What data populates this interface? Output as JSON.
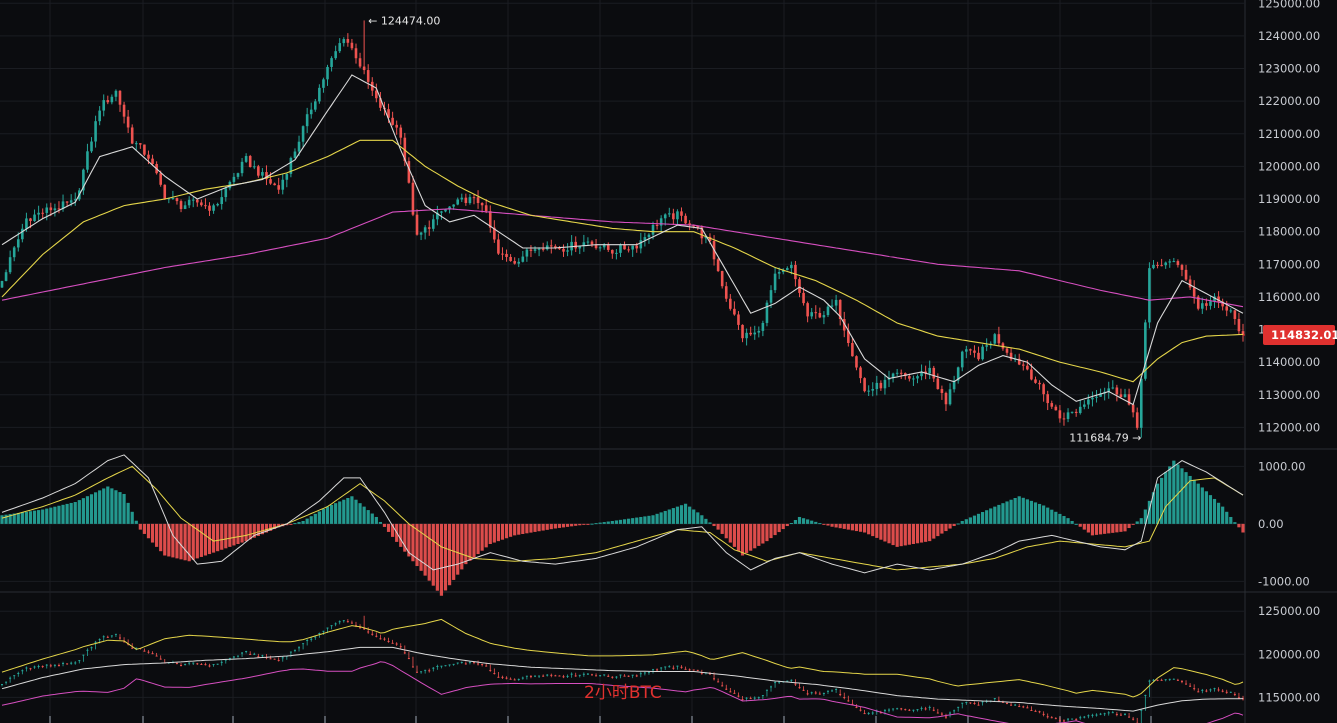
{
  "chart_data": [
    {
      "type": "candlestick",
      "panel": "price",
      "timeframe_label": "2小时BTC",
      "y_ticks": [
        "125000.00",
        "124000.00",
        "123000.00",
        "122000.00",
        "121000.00",
        "120000.00",
        "119000.00",
        "118000.00",
        "117000.00",
        "116000.00",
        "115000.00",
        "114000.00",
        "113000.00",
        "112000.00"
      ],
      "ylim": [
        111400,
        125100
      ],
      "high_marker": "124474.00",
      "low_marker": "111684.79",
      "current_price": "114832.01",
      "current_price_value": 114832.01,
      "colors": {
        "up": "#26a69a",
        "down": "#ef5350",
        "ma_fast": "#d9d9d9",
        "ma_mid": "#e5d64a",
        "ma_slow": "#d64fc0",
        "price_tag": "#e0312f"
      },
      "close_path": [
        [
          0,
          116500
        ],
        [
          6,
          118400
        ],
        [
          12,
          118700
        ],
        [
          18,
          118900
        ],
        [
          24,
          121800
        ],
        [
          28,
          122300
        ],
        [
          32,
          120800
        ],
        [
          36,
          120300
        ],
        [
          40,
          119100
        ],
        [
          44,
          118800
        ],
        [
          48,
          118900
        ],
        [
          52,
          118700
        ],
        [
          56,
          119500
        ],
        [
          60,
          120200
        ],
        [
          64,
          119700
        ],
        [
          68,
          119300
        ],
        [
          72,
          120500
        ],
        [
          76,
          121800
        ],
        [
          80,
          123000
        ],
        [
          84,
          124000
        ],
        [
          87,
          123400
        ],
        [
          92,
          122000
        ],
        [
          98,
          121000
        ],
        [
          102,
          117800
        ],
        [
          108,
          118600
        ],
        [
          114,
          119000
        ],
        [
          118,
          118900
        ],
        [
          122,
          117300
        ],
        [
          126,
          117100
        ],
        [
          132,
          117600
        ],
        [
          138,
          117500
        ],
        [
          144,
          117700
        ],
        [
          150,
          117400
        ],
        [
          156,
          117600
        ],
        [
          162,
          118400
        ],
        [
          166,
          118500
        ],
        [
          170,
          118200
        ],
        [
          174,
          117600
        ],
        [
          178,
          116000
        ],
        [
          182,
          114800
        ],
        [
          186,
          114900
        ],
        [
          190,
          116600
        ],
        [
          194,
          116900
        ],
        [
          198,
          115400
        ],
        [
          202,
          115500
        ],
        [
          205,
          115800
        ],
        [
          208,
          114700
        ],
        [
          212,
          113100
        ],
        [
          216,
          113300
        ],
        [
          220,
          113600
        ],
        [
          224,
          113500
        ],
        [
          228,
          113800
        ],
        [
          232,
          112700
        ],
        [
          236,
          114300
        ],
        [
          240,
          114200
        ],
        [
          244,
          114800
        ],
        [
          248,
          114200
        ],
        [
          252,
          113800
        ],
        [
          256,
          113000
        ],
        [
          260,
          112300
        ],
        [
          264,
          112500
        ],
        [
          268,
          113000
        ],
        [
          272,
          113200
        ],
        [
          276,
          113000
        ],
        [
          279,
          112000
        ],
        [
          282,
          116800
        ],
        [
          286,
          117100
        ],
        [
          290,
          116900
        ],
        [
          294,
          115700
        ],
        [
          298,
          115900
        ],
        [
          302,
          115500
        ],
        [
          305,
          114832
        ]
      ],
      "ma_fast": [
        [
          0,
          117600
        ],
        [
          10,
          118400
        ],
        [
          18,
          118900
        ],
        [
          24,
          120300
        ],
        [
          32,
          120600
        ],
        [
          40,
          119700
        ],
        [
          48,
          119000
        ],
        [
          56,
          119400
        ],
        [
          64,
          119600
        ],
        [
          72,
          120200
        ],
        [
          80,
          121700
        ],
        [
          86,
          122800
        ],
        [
          92,
          122400
        ],
        [
          98,
          120500
        ],
        [
          104,
          118800
        ],
        [
          110,
          118300
        ],
        [
          116,
          118500
        ],
        [
          122,
          118000
        ],
        [
          128,
          117500
        ],
        [
          136,
          117500
        ],
        [
          146,
          117600
        ],
        [
          156,
          117600
        ],
        [
          166,
          118200
        ],
        [
          172,
          118100
        ],
        [
          178,
          116800
        ],
        [
          184,
          115500
        ],
        [
          190,
          115800
        ],
        [
          196,
          116300
        ],
        [
          202,
          115900
        ],
        [
          206,
          115400
        ],
        [
          212,
          114100
        ],
        [
          218,
          113500
        ],
        [
          226,
          113700
        ],
        [
          234,
          113400
        ],
        [
          240,
          113900
        ],
        [
          246,
          114200
        ],
        [
          252,
          114000
        ],
        [
          258,
          113300
        ],
        [
          264,
          112800
        ],
        [
          272,
          113100
        ],
        [
          278,
          112700
        ],
        [
          284,
          115200
        ],
        [
          290,
          116500
        ],
        [
          296,
          116100
        ],
        [
          305,
          115500
        ]
      ],
      "ma_mid": [
        [
          0,
          116000
        ],
        [
          10,
          117300
        ],
        [
          20,
          118300
        ],
        [
          30,
          118800
        ],
        [
          40,
          119000
        ],
        [
          50,
          119300
        ],
        [
          60,
          119500
        ],
        [
          70,
          119800
        ],
        [
          80,
          120300
        ],
        [
          88,
          120800
        ],
        [
          96,
          120800
        ],
        [
          104,
          120000
        ],
        [
          112,
          119400
        ],
        [
          120,
          118900
        ],
        [
          130,
          118500
        ],
        [
          140,
          118300
        ],
        [
          150,
          118100
        ],
        [
          160,
          118000
        ],
        [
          170,
          118000
        ],
        [
          180,
          117500
        ],
        [
          190,
          116900
        ],
        [
          200,
          116500
        ],
        [
          210,
          115900
        ],
        [
          220,
          115200
        ],
        [
          230,
          114800
        ],
        [
          240,
          114600
        ],
        [
          250,
          114400
        ],
        [
          260,
          114000
        ],
        [
          270,
          113700
        ],
        [
          278,
          113400
        ],
        [
          284,
          114100
        ],
        [
          290,
          114600
        ],
        [
          296,
          114800
        ],
        [
          305,
          114850
        ]
      ],
      "ma_slow": [
        [
          0,
          115900
        ],
        [
          20,
          116400
        ],
        [
          40,
          116900
        ],
        [
          60,
          117300
        ],
        [
          80,
          117800
        ],
        [
          96,
          118600
        ],
        [
          110,
          118700
        ],
        [
          130,
          118500
        ],
        [
          150,
          118300
        ],
        [
          170,
          118200
        ],
        [
          190,
          117800
        ],
        [
          210,
          117400
        ],
        [
          230,
          117000
        ],
        [
          250,
          116800
        ],
        [
          270,
          116200
        ],
        [
          282,
          115900
        ],
        [
          292,
          116000
        ],
        [
          305,
          115700
        ]
      ]
    },
    {
      "type": "macd",
      "panel": "oscillator",
      "y_ticks": [
        "1000.00",
        "0.00",
        "-1000.00"
      ],
      "ylim": [
        -1150,
        1250
      ],
      "hist": [
        [
          0,
          150
        ],
        [
          10,
          250
        ],
        [
          18,
          380
        ],
        [
          26,
          650
        ],
        [
          30,
          520
        ],
        [
          34,
          -100
        ],
        [
          40,
          -550
        ],
        [
          46,
          -650
        ],
        [
          52,
          -500
        ],
        [
          60,
          -300
        ],
        [
          68,
          -60
        ],
        [
          74,
          50
        ],
        [
          80,
          300
        ],
        [
          86,
          480
        ],
        [
          92,
          120
        ],
        [
          98,
          -400
        ],
        [
          104,
          -900
        ],
        [
          108,
          -1250
        ],
        [
          114,
          -700
        ],
        [
          120,
          -350
        ],
        [
          126,
          -200
        ],
        [
          136,
          -80
        ],
        [
          150,
          50
        ],
        [
          160,
          150
        ],
        [
          168,
          350
        ],
        [
          172,
          150
        ],
        [
          176,
          -100
        ],
        [
          182,
          -550
        ],
        [
          188,
          -300
        ],
        [
          196,
          120
        ],
        [
          204,
          -50
        ],
        [
          212,
          -150
        ],
        [
          220,
          -400
        ],
        [
          228,
          -300
        ],
        [
          236,
          50
        ],
        [
          244,
          300
        ],
        [
          250,
          480
        ],
        [
          256,
          320
        ],
        [
          262,
          100
        ],
        [
          268,
          -200
        ],
        [
          276,
          -130
        ],
        [
          280,
          100
        ],
        [
          284,
          700
        ],
        [
          288,
          1100
        ],
        [
          294,
          700
        ],
        [
          300,
          300
        ],
        [
          305,
          -150
        ]
      ],
      "dif": [
        [
          0,
          200
        ],
        [
          10,
          450
        ],
        [
          18,
          700
        ],
        [
          26,
          1100
        ],
        [
          30,
          1200
        ],
        [
          36,
          800
        ],
        [
          42,
          -200
        ],
        [
          48,
          -700
        ],
        [
          54,
          -650
        ],
        [
          62,
          -200
        ],
        [
          70,
          0
        ],
        [
          78,
          400
        ],
        [
          84,
          800
        ],
        [
          88,
          800
        ],
        [
          94,
          200
        ],
        [
          100,
          -500
        ],
        [
          106,
          -800
        ],
        [
          112,
          -700
        ],
        [
          120,
          -500
        ],
        [
          128,
          -650
        ],
        [
          136,
          -700
        ],
        [
          146,
          -600
        ],
        [
          156,
          -400
        ],
        [
          166,
          -100
        ],
        [
          172,
          -50
        ],
        [
          178,
          -500
        ],
        [
          184,
          -800
        ],
        [
          190,
          -600
        ],
        [
          196,
          -500
        ],
        [
          204,
          -700
        ],
        [
          212,
          -850
        ],
        [
          220,
          -700
        ],
        [
          228,
          -800
        ],
        [
          236,
          -700
        ],
        [
          244,
          -500
        ],
        [
          250,
          -300
        ],
        [
          258,
          -200
        ],
        [
          264,
          -300
        ],
        [
          270,
          -400
        ],
        [
          276,
          -450
        ],
        [
          280,
          -300
        ],
        [
          284,
          800
        ],
        [
          290,
          1100
        ],
        [
          296,
          900
        ],
        [
          305,
          500
        ]
      ],
      "dea": [
        [
          0,
          100
        ],
        [
          10,
          300
        ],
        [
          18,
          500
        ],
        [
          26,
          800
        ],
        [
          32,
          1000
        ],
        [
          38,
          600
        ],
        [
          44,
          100
        ],
        [
          52,
          -300
        ],
        [
          60,
          -200
        ],
        [
          70,
          0
        ],
        [
          80,
          300
        ],
        [
          88,
          700
        ],
        [
          94,
          400
        ],
        [
          100,
          0
        ],
        [
          108,
          -400
        ],
        [
          116,
          -600
        ],
        [
          126,
          -650
        ],
        [
          136,
          -600
        ],
        [
          146,
          -500
        ],
        [
          156,
          -300
        ],
        [
          166,
          -100
        ],
        [
          174,
          -150
        ],
        [
          180,
          -450
        ],
        [
          188,
          -650
        ],
        [
          196,
          -500
        ],
        [
          204,
          -600
        ],
        [
          212,
          -700
        ],
        [
          220,
          -800
        ],
        [
          228,
          -750
        ],
        [
          236,
          -700
        ],
        [
          244,
          -600
        ],
        [
          252,
          -400
        ],
        [
          260,
          -300
        ],
        [
          268,
          -350
        ],
        [
          276,
          -400
        ],
        [
          282,
          -300
        ],
        [
          286,
          300
        ],
        [
          292,
          750
        ],
        [
          298,
          800
        ],
        [
          305,
          500
        ]
      ]
    },
    {
      "type": "bollinger",
      "panel": "bands",
      "y_ticks": [
        "125000.00",
        "120000.00",
        "115000.00"
      ],
      "ylim": [
        112600,
        127000
      ]
    }
  ],
  "annotations": {
    "watermark": "2小时BTC"
  }
}
